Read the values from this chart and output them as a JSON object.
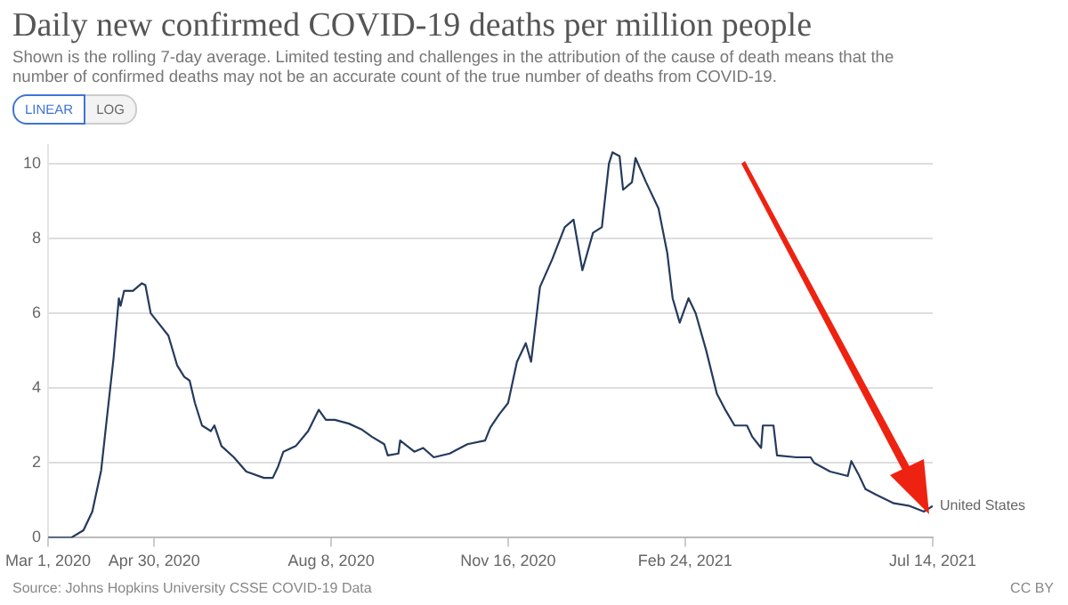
{
  "chart_data": {
    "type": "line",
    "title": "Daily new confirmed COVID-19 deaths per million people",
    "subtitle": "Shown is the rolling 7-day average. Limited testing and challenges in the attribution of the cause of death means that the number of confirmed deaths may not be an accurate count of the true number of deaths from COVID-19.",
    "annotations": [
      "LINEAR",
      "LOG",
      "Source: Johns Hopkins University CSSE COVID-19 Data",
      "CC BY"
    ],
    "x": [
      "2020-03-01",
      "2020-03-14",
      "2020-03-21",
      "2020-03-26",
      "2020-03-31",
      "2020-04-03",
      "2020-04-07",
      "2020-04-10",
      "2020-04-11",
      "2020-04-13",
      "2020-04-18",
      "2020-04-23",
      "2020-04-25",
      "2020-04-28",
      "2020-05-03",
      "2020-05-08",
      "2020-05-13",
      "2020-05-17",
      "2020-05-20",
      "2020-05-23",
      "2020-05-27",
      "2020-06-01",
      "2020-06-03",
      "2020-06-07",
      "2020-06-14",
      "2020-06-21",
      "2020-07-01",
      "2020-07-06",
      "2020-07-09",
      "2020-07-12",
      "2020-07-19",
      "2020-07-26",
      "2020-08-01",
      "2020-08-05",
      "2020-08-10",
      "2020-08-18",
      "2020-08-25",
      "2020-08-31",
      "2020-09-07",
      "2020-09-09",
      "2020-09-15",
      "2020-09-16",
      "2020-09-24",
      "2020-09-29",
      "2020-10-05",
      "2020-10-14",
      "2020-10-24",
      "2020-11-03",
      "2020-11-06",
      "2020-11-11",
      "2020-11-16",
      "2020-11-21",
      "2020-11-26",
      "2020-11-29",
      "2020-12-04",
      "2020-12-11",
      "2020-12-18",
      "2020-12-23",
      "2020-12-28",
      "2021-01-03",
      "2021-01-08",
      "2021-01-12",
      "2021-01-14",
      "2021-01-18",
      "2021-01-20",
      "2021-01-25",
      "2021-01-27",
      "2021-02-02",
      "2021-02-09",
      "2021-02-14",
      "2021-02-17",
      "2021-02-21",
      "2021-02-26",
      "2021-03-02",
      "2021-03-08",
      "2021-03-14",
      "2021-03-19",
      "2021-03-24",
      "2021-03-31",
      "2021-04-03",
      "2021-04-08",
      "2021-04-09",
      "2021-04-15",
      "2021-04-17",
      "2021-04-28",
      "2021-05-06",
      "2021-05-08",
      "2021-05-17",
      "2021-05-27",
      "2021-05-29",
      "2021-06-02",
      "2021-06-06",
      "2021-06-12",
      "2021-06-22",
      "2021-07-01",
      "2021-07-09",
      "2021-07-14"
    ],
    "series": [
      {
        "name": "United States",
        "color": "#253a5c",
        "values": [
          0,
          0,
          0.2,
          0.7,
          1.8,
          3.1,
          4.8,
          6.4,
          6.2,
          6.6,
          6.6,
          6.8,
          6.75,
          6.0,
          5.7,
          5.4,
          4.6,
          4.3,
          4.2,
          3.6,
          3.0,
          2.85,
          3.0,
          2.45,
          2.15,
          1.77,
          1.6,
          1.6,
          1.9,
          2.3,
          2.45,
          2.85,
          3.42,
          3.15,
          3.15,
          3.05,
          2.9,
          2.7,
          2.5,
          2.2,
          2.25,
          2.6,
          2.3,
          2.4,
          2.15,
          2.25,
          2.5,
          2.6,
          2.95,
          3.3,
          3.6,
          4.7,
          5.2,
          4.7,
          6.7,
          7.45,
          8.3,
          8.5,
          7.15,
          8.15,
          8.3,
          10.0,
          10.3,
          10.2,
          9.3,
          9.5,
          10.15,
          9.5,
          8.8,
          7.6,
          6.4,
          5.75,
          6.4,
          6.0,
          5.0,
          3.85,
          3.4,
          3.0,
          3.0,
          2.7,
          2.4,
          3.0,
          3.0,
          2.2,
          2.15,
          2.15,
          2.0,
          1.77,
          1.65,
          2.05,
          1.7,
          1.3,
          1.15,
          0.92,
          0.85,
          0.7,
          0.85
        ]
      }
    ],
    "xlim": [
      "2020-03-01",
      "2021-07-14"
    ],
    "xticks": [
      {
        "value": "2020-03-01",
        "label": "Mar 1, 2020"
      },
      {
        "value": "2020-04-30",
        "label": "Apr 30, 2020"
      },
      {
        "value": "2020-08-08",
        "label": "Aug 8, 2020"
      },
      {
        "value": "2020-11-16",
        "label": "Nov 16, 2020"
      },
      {
        "value": "2021-02-24",
        "label": "Feb 24, 2021"
      },
      {
        "value": "2021-07-14",
        "label": "Jul 14, 2021"
      }
    ],
    "ylim": [
      0,
      10.5
    ],
    "yticks": [
      0,
      2,
      4,
      6,
      8,
      10
    ],
    "grid": "y",
    "legend": false
  }
}
